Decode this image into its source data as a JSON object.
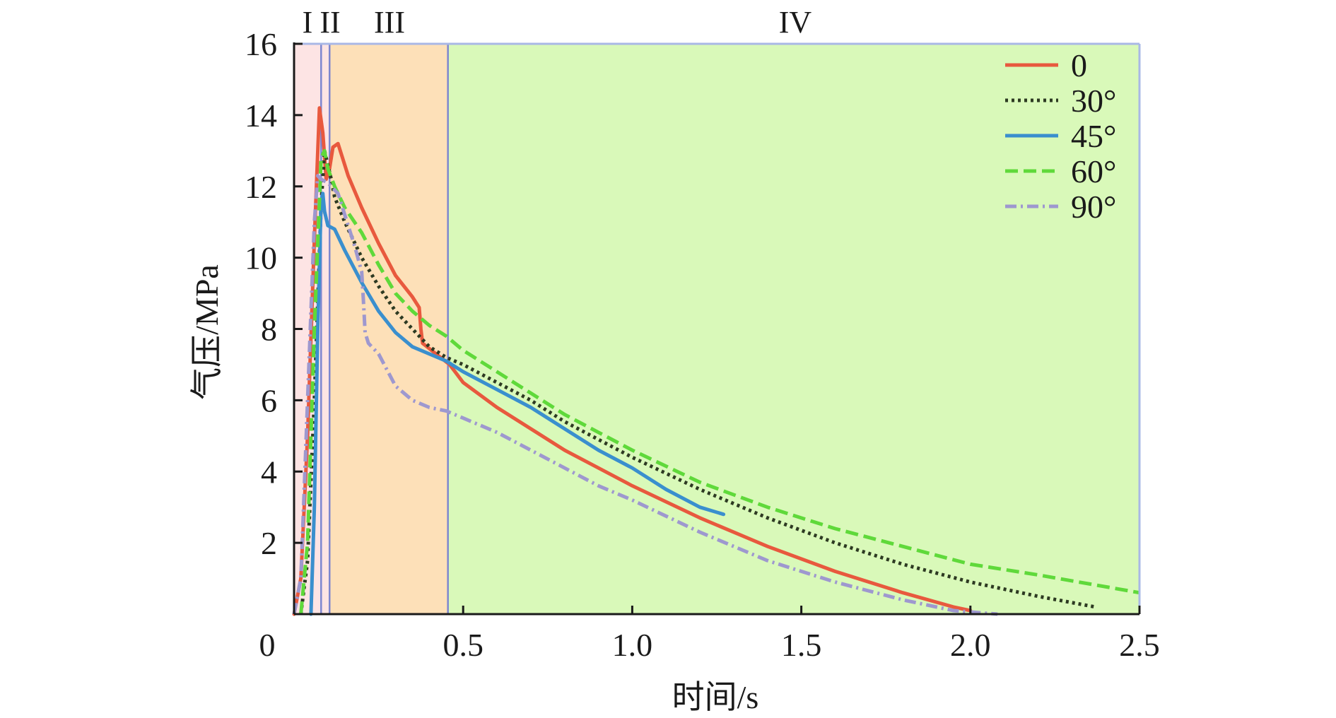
{
  "chart_data": {
    "type": "line",
    "xlabel": "时间/s",
    "ylabel": "气压/MPa",
    "xlim": [
      0,
      2.5
    ],
    "ylim": [
      0,
      16
    ],
    "x_ticks": [
      0,
      0.5,
      1.0,
      1.5,
      2.0,
      2.5
    ],
    "x_tick_labels": [
      "0",
      "0.5",
      "1.0",
      "1.5",
      "2.0",
      "2.5"
    ],
    "y_ticks": [
      2,
      4,
      6,
      8,
      10,
      12,
      14,
      16
    ],
    "y_tick_labels": [
      "2",
      "4",
      "6",
      "8",
      "10",
      "12",
      "14",
      "16"
    ],
    "grid": false,
    "legend_position": "top-right",
    "regions": [
      {
        "label": "I",
        "x_start": 0.0,
        "x_end": 0.08,
        "color": "#fde4e4"
      },
      {
        "label": "II",
        "x_start": 0.08,
        "x_end": 0.105,
        "color": "#fde4e4"
      },
      {
        "label": "III",
        "x_start": 0.105,
        "x_end": 0.455,
        "color": "#fde0b8"
      },
      {
        "label": "IV",
        "x_start": 0.455,
        "x_end": 2.5,
        "color": "#d9f9b9"
      }
    ],
    "region_boundaries": [
      0.08,
      0.105,
      0.455
    ],
    "series": [
      {
        "name": "0",
        "color": "#e8593e",
        "dash": "solid",
        "x": [
          0.0,
          0.02,
          0.04,
          0.06,
          0.075,
          0.085,
          0.095,
          0.105,
          0.115,
          0.13,
          0.16,
          0.2,
          0.25,
          0.3,
          0.35,
          0.37,
          0.375,
          0.38,
          0.42,
          0.46,
          0.5,
          0.6,
          0.7,
          0.8,
          0.9,
          1.0,
          1.2,
          1.4,
          1.6,
          1.8,
          1.95,
          2.0
        ],
        "y": [
          0.0,
          1.0,
          5.0,
          10.5,
          14.2,
          13.5,
          12.2,
          12.5,
          13.1,
          13.2,
          12.3,
          11.4,
          10.4,
          9.5,
          8.9,
          8.6,
          8.0,
          7.6,
          7.3,
          7.0,
          6.5,
          5.8,
          5.2,
          4.6,
          4.1,
          3.6,
          2.7,
          1.9,
          1.2,
          0.6,
          0.2,
          0.1
        ]
      },
      {
        "name": "30°",
        "color": "#2d3a22",
        "dash": "dotted",
        "x": [
          0.02,
          0.04,
          0.06,
          0.08,
          0.09,
          0.1,
          0.11,
          0.12,
          0.15,
          0.2,
          0.25,
          0.3,
          0.35,
          0.4,
          0.45,
          0.5,
          0.6,
          0.7,
          0.8,
          0.9,
          1.0,
          1.2,
          1.4,
          1.6,
          1.8,
          2.0,
          2.2,
          2.37
        ],
        "y": [
          0.0,
          1.5,
          6.0,
          11.5,
          13.0,
          12.6,
          12.2,
          11.7,
          11.0,
          10.0,
          9.2,
          8.5,
          8.0,
          7.5,
          7.2,
          7.0,
          6.5,
          6.0,
          5.4,
          4.9,
          4.4,
          3.5,
          2.7,
          2.0,
          1.4,
          0.9,
          0.5,
          0.2
        ]
      },
      {
        "name": "45°",
        "color": "#3a8fce",
        "dash": "solid",
        "x": [
          0.05,
          0.06,
          0.07,
          0.08,
          0.085,
          0.09,
          0.1,
          0.12,
          0.15,
          0.2,
          0.25,
          0.3,
          0.35,
          0.4,
          0.45,
          0.5,
          0.6,
          0.7,
          0.8,
          0.9,
          1.0,
          1.1,
          1.2,
          1.27
        ],
        "y": [
          0.0,
          3.0,
          8.0,
          11.6,
          11.8,
          11.3,
          10.9,
          10.8,
          10.2,
          9.3,
          8.5,
          7.9,
          7.5,
          7.3,
          7.1,
          6.8,
          6.3,
          5.8,
          5.2,
          4.6,
          4.1,
          3.5,
          3.0,
          2.8
        ]
      },
      {
        "name": "60°",
        "color": "#5fd93a",
        "dash": "dashed",
        "x": [
          0.02,
          0.04,
          0.06,
          0.08,
          0.09,
          0.1,
          0.12,
          0.15,
          0.2,
          0.25,
          0.3,
          0.35,
          0.4,
          0.45,
          0.5,
          0.6,
          0.7,
          0.8,
          0.9,
          1.0,
          1.2,
          1.4,
          1.6,
          1.8,
          2.0,
          2.2,
          2.5
        ],
        "y": [
          0.0,
          2.0,
          8.0,
          12.8,
          13.0,
          12.5,
          12.0,
          11.4,
          10.7,
          9.8,
          9.0,
          8.5,
          8.1,
          7.8,
          7.4,
          6.8,
          6.2,
          5.6,
          5.1,
          4.6,
          3.7,
          3.0,
          2.4,
          1.9,
          1.4,
          1.1,
          0.6
        ]
      },
      {
        "name": "90°",
        "color": "#9e98cf",
        "dash": "dashdot",
        "x": [
          0.0,
          0.02,
          0.04,
          0.06,
          0.07,
          0.08,
          0.1,
          0.13,
          0.15,
          0.18,
          0.2,
          0.205,
          0.21,
          0.22,
          0.25,
          0.3,
          0.35,
          0.4,
          0.45,
          0.5,
          0.6,
          0.7,
          0.8,
          0.9,
          1.0,
          1.2,
          1.4,
          1.6,
          1.8,
          1.95,
          2.08
        ],
        "y": [
          0.0,
          1.0,
          6.0,
          11.0,
          12.3,
          12.2,
          12.1,
          11.8,
          11.2,
          10.3,
          9.6,
          8.8,
          7.9,
          7.6,
          7.3,
          6.4,
          6.0,
          5.8,
          5.7,
          5.5,
          5.1,
          4.6,
          4.1,
          3.6,
          3.2,
          2.3,
          1.5,
          0.9,
          0.4,
          0.1,
          0.0
        ]
      }
    ]
  }
}
